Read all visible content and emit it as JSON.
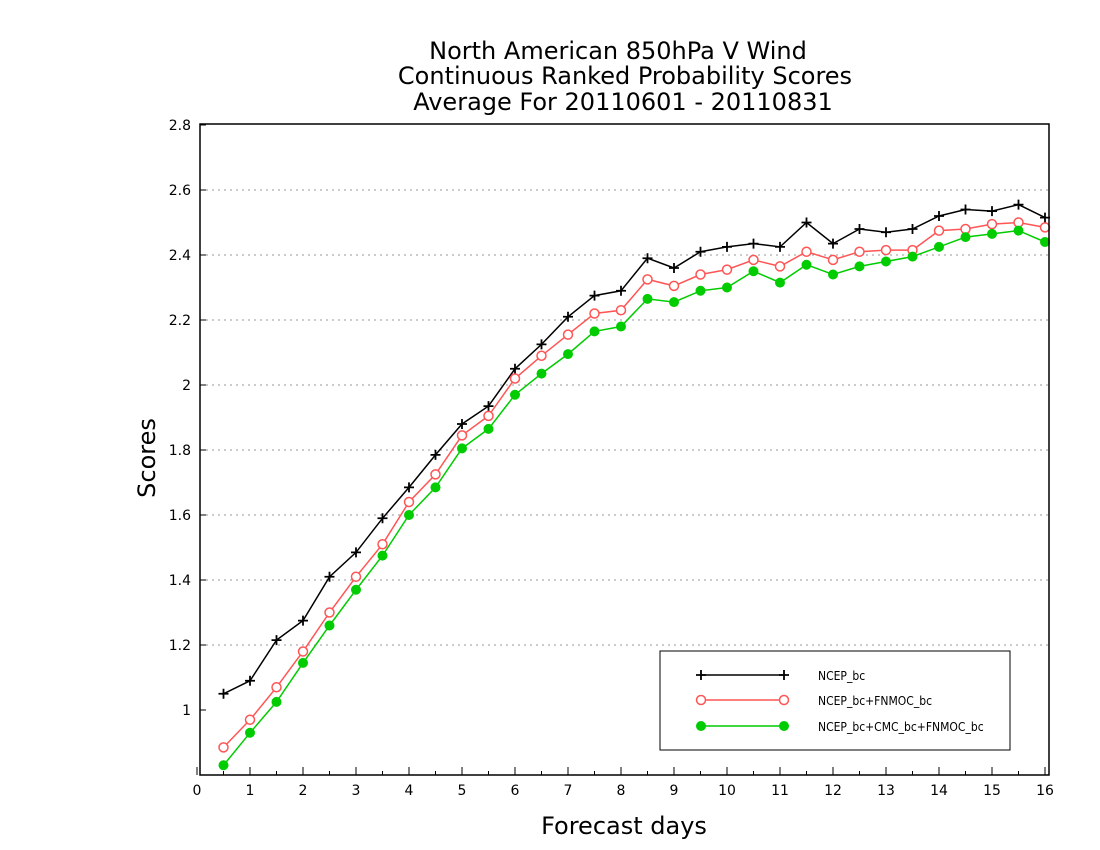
{
  "chart_data": {
    "type": "line",
    "title_lines": [
      "North American 850hPa V Wind",
      "Continuous Ranked Probability Scores",
      "Average For 20110601 - 20110831"
    ],
    "xlabel": "Forecast days",
    "ylabel": "Scores",
    "xlim": [
      0,
      16
    ],
    "ylim": [
      0.82,
      2.8
    ],
    "xticks": [
      "0",
      "1",
      "2",
      "3",
      "4",
      "5",
      "6",
      "7",
      "8",
      "9",
      "10",
      "11",
      "12",
      "13",
      "14",
      "15",
      "16"
    ],
    "yticks": [
      "1",
      "1.2",
      "1.4",
      "1.6",
      "1.8",
      "2",
      "2.2",
      "2.4",
      "2.6",
      "2.8"
    ],
    "grid": "horizontal dotted",
    "legend_position": "bottom-right",
    "x": [
      0.5,
      1,
      1.5,
      2,
      2.5,
      3,
      3.5,
      4,
      4.5,
      5,
      5.5,
      6,
      6.5,
      7,
      7.5,
      8,
      8.5,
      9,
      9.5,
      10,
      10.5,
      11,
      11.5,
      12,
      12.5,
      13,
      13.5,
      14,
      14.5,
      15,
      15.5,
      16
    ],
    "series": [
      {
        "name": "NCEP_bc",
        "color": "#000000",
        "marker": "plus",
        "values": [
          1.05,
          1.09,
          1.215,
          1.275,
          1.41,
          1.485,
          1.59,
          1.685,
          1.785,
          1.88,
          1.935,
          2.05,
          2.125,
          2.21,
          2.275,
          2.29,
          2.39,
          2.36,
          2.41,
          2.425,
          2.435,
          2.425,
          2.5,
          2.435,
          2.48,
          2.47,
          2.48,
          2.52,
          2.54,
          2.535,
          2.555,
          2.515
        ]
      },
      {
        "name": "NCEP_bc+FNMOC_bc",
        "color": "#ff5555",
        "marker": "open-circle",
        "values": [
          0.885,
          0.97,
          1.07,
          1.18,
          1.3,
          1.41,
          1.51,
          1.64,
          1.725,
          1.845,
          1.905,
          2.02,
          2.09,
          2.155,
          2.22,
          2.23,
          2.325,
          2.305,
          2.34,
          2.355,
          2.385,
          2.365,
          2.41,
          2.385,
          2.41,
          2.415,
          2.415,
          2.475,
          2.48,
          2.495,
          2.5,
          2.485
        ]
      },
      {
        "name": "NCEP_bc+CMC_bc+FNMOC_bc",
        "color": "#00cc00",
        "marker": "filled-circle",
        "values": [
          0.83,
          0.93,
          1.025,
          1.145,
          1.26,
          1.37,
          1.475,
          1.6,
          1.685,
          1.805,
          1.865,
          1.97,
          2.035,
          2.095,
          2.165,
          2.18,
          2.265,
          2.255,
          2.29,
          2.3,
          2.35,
          2.315,
          2.37,
          2.34,
          2.365,
          2.38,
          2.395,
          2.425,
          2.455,
          2.465,
          2.475,
          2.44
        ]
      }
    ]
  }
}
